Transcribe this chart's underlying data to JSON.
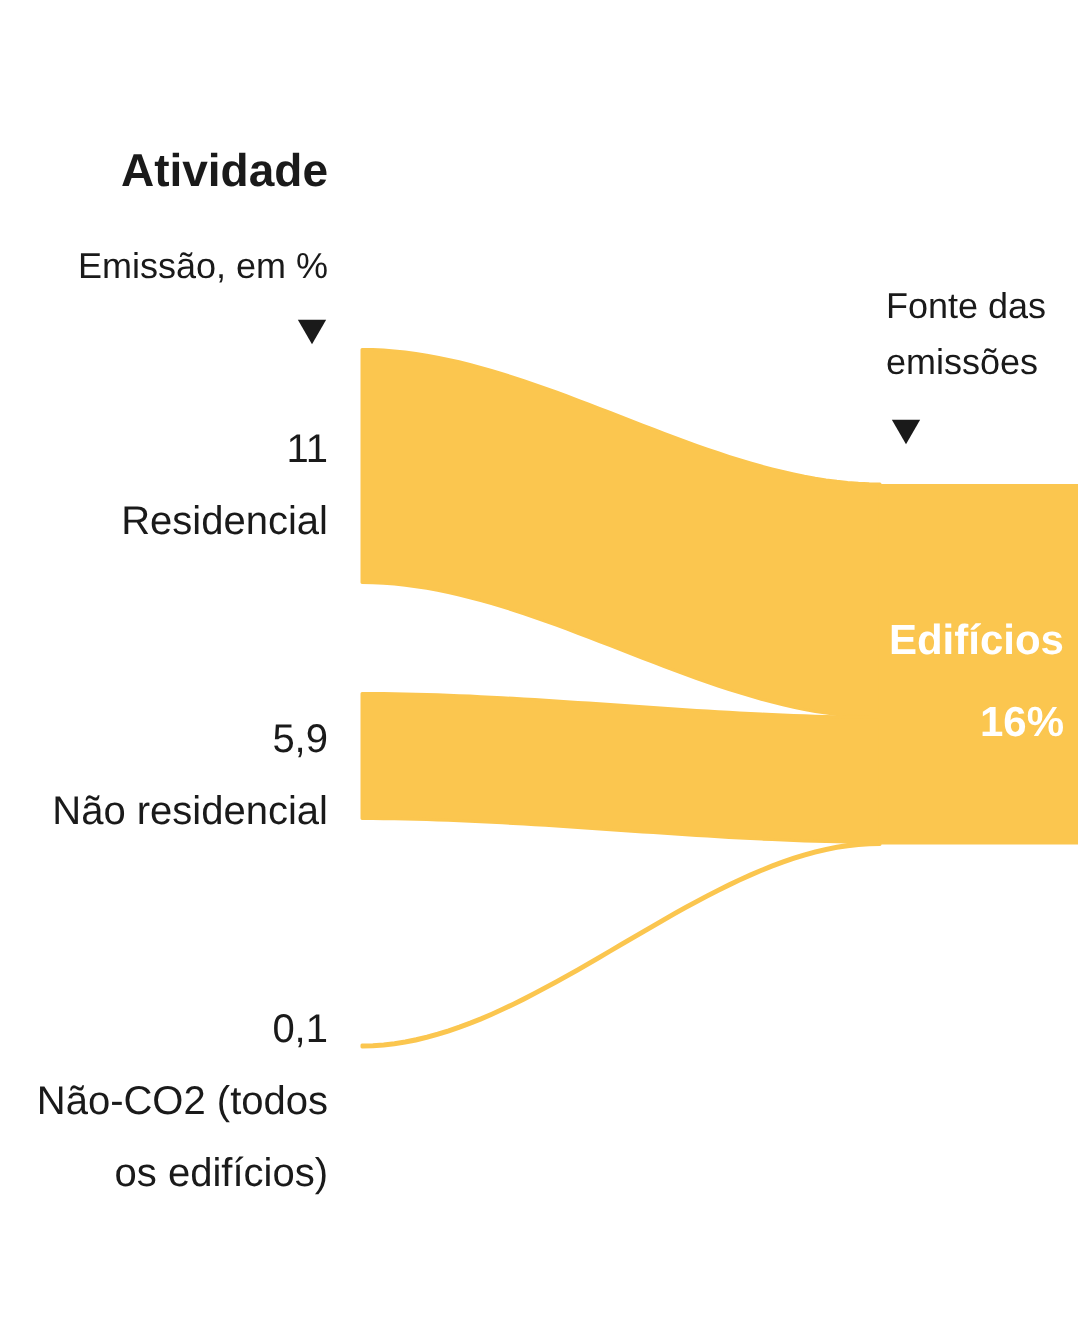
{
  "chart_data": {
    "type": "other",
    "title": "Atividade",
    "subtitle": "Emissão, em %",
    "categories": [
      "Residencial",
      "Não residencial",
      "Não-CO2 (todos os edifícios)"
    ],
    "values": [
      11,
      5.9,
      0.1
    ],
    "value_labels": [
      "11",
      "5,9",
      "0,1"
    ],
    "colors": [
      "#fbc64f",
      "#fbc64f",
      "#fbc64f"
    ],
    "totals": [
      "16%"
    ],
    "annotations": [
      "Fonte das emissões",
      "Edifícios"
    ]
  }
}
